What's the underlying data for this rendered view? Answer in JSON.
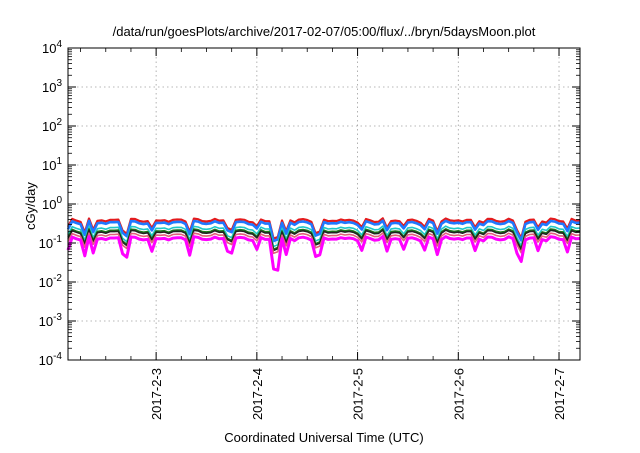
{
  "chart_data": {
    "type": "line",
    "title": "/data/run/goesPlots/archive/2017-02-07/05:00/flux/../bryn/5daysMoon.plot",
    "xlabel": "Coordinated Universal Time (UTC)",
    "ylabel": "cGy/day",
    "yscale": "log",
    "ylim": [
      0.0001,
      10000
    ],
    "y_ticks": [
      {
        "value": 0.0001,
        "base": "10",
        "exp": "-4"
      },
      {
        "value": 0.001,
        "base": "10",
        "exp": "-3"
      },
      {
        "value": 0.01,
        "base": "10",
        "exp": "-2"
      },
      {
        "value": 0.1,
        "base": "10",
        "exp": "-1"
      },
      {
        "value": 1,
        "base": "10",
        "exp": "0"
      },
      {
        "value": 10,
        "base": "10",
        "exp": "1"
      },
      {
        "value": 100,
        "base": "10",
        "exp": "2"
      },
      {
        "value": 1000,
        "base": "10",
        "exp": "3"
      },
      {
        "value": 10000,
        "base": "10",
        "exp": "4"
      }
    ],
    "xlim": [
      "2017-02-02 03:00",
      "2017-02-07 05:00"
    ],
    "x_ticks": [
      "2017-2-3",
      "2017-2-4",
      "2017-2-5",
      "2017-2-6",
      "2017-2-7"
    ],
    "grid": true,
    "legend": "none",
    "series": [
      {
        "color": "#e41a1c",
        "base": 0.38
      },
      {
        "color": "#1f78ff",
        "base": 0.33
      },
      {
        "color": "#20c8c8",
        "base": 0.24
      },
      {
        "color": "#1a7a1a",
        "base": 0.205
      },
      {
        "color": "#222222",
        "base": 0.19
      },
      {
        "color": "#e0607a",
        "base": 0.16
      },
      {
        "color": "#ff00ff",
        "base": 0.13
      }
    ],
    "dips": [
      {
        "time": "2017-02-02 03:00",
        "factor": 0.55
      },
      {
        "time": "2017-02-02 07:00",
        "factor": 0.45
      },
      {
        "time": "2017-02-02 09:00",
        "factor": 0.5
      },
      {
        "time": "2017-02-02 16:00",
        "factor": 0.5
      },
      {
        "time": "2017-02-02 17:00",
        "factor": 0.45
      },
      {
        "time": "2017-02-02 23:00",
        "factor": 0.5
      },
      {
        "time": "2017-02-03 08:00",
        "factor": 0.5
      },
      {
        "time": "2017-02-03 17:00",
        "factor": 0.55
      },
      {
        "time": "2017-02-03 18:00",
        "factor": 0.55
      },
      {
        "time": "2017-02-04 00:00",
        "factor": 0.55
      },
      {
        "time": "2017-02-04 04:00",
        "factor": 0.2
      },
      {
        "time": "2017-02-04 05:00",
        "factor": 0.17
      },
      {
        "time": "2017-02-04 07:00",
        "factor": 0.45
      },
      {
        "time": "2017-02-04 14:00",
        "factor": 0.45
      },
      {
        "time": "2017-02-04 15:00",
        "factor": 0.4
      },
      {
        "time": "2017-02-05 01:00",
        "factor": 0.55
      },
      {
        "time": "2017-02-05 07:00",
        "factor": 0.55
      },
      {
        "time": "2017-02-05 11:00",
        "factor": 0.6
      },
      {
        "time": "2017-02-05 16:00",
        "factor": 0.55
      },
      {
        "time": "2017-02-05 19:00",
        "factor": 0.5
      },
      {
        "time": "2017-02-06 04:00",
        "factor": 0.55
      },
      {
        "time": "2017-02-06 14:00",
        "factor": 0.5
      },
      {
        "time": "2017-02-06 15:00",
        "factor": 0.3
      },
      {
        "time": "2017-02-06 19:00",
        "factor": 0.55
      },
      {
        "time": "2017-02-07 02:00",
        "factor": 0.55
      }
    ]
  }
}
